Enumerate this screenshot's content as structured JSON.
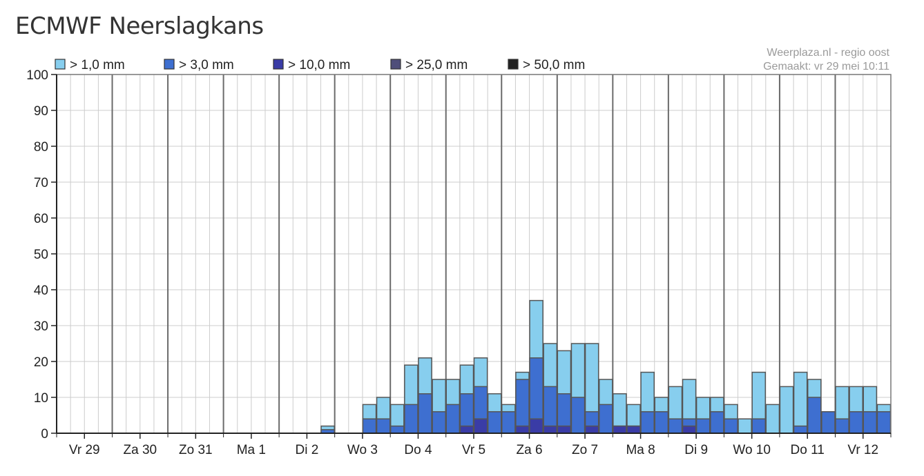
{
  "page_title": "ECMWF Neerslagkans",
  "credit": {
    "line1": "Weerplaza.nl - regio oost",
    "line2": "Gemaakt: vr 29 mei 10:11"
  },
  "colors": {
    "gt1": "#87ceee",
    "gt3": "#3e6fd0",
    "gt10": "#3a3ca6",
    "gt25": "#4f4e7a",
    "gt50": "#222222",
    "grid_major": "#6a6a6a",
    "grid_minor": "#cccccc",
    "bar_stroke": "#555555"
  },
  "chart_data": {
    "type": "bar",
    "stacked": "overlay",
    "ylim": [
      0,
      100
    ],
    "yticks": [
      0,
      10,
      20,
      30,
      40,
      50,
      60,
      70,
      80,
      90,
      100
    ],
    "grid": true,
    "legend_position": "top",
    "xlabel": "",
    "ylabel": "",
    "days": [
      "Vr 29",
      "Za 30",
      "Zo 31",
      "Ma 1",
      "Di 2",
      "Wo 3",
      "Do 4",
      "Vr 5",
      "Za 6",
      "Zo 7",
      "Ma 8",
      "Di 9",
      "Wo 10",
      "Do 11",
      "Vr 12"
    ],
    "periods_per_day": 4,
    "series": [
      {
        "name": "> 1,0 mm",
        "color_key": "gt1",
        "values": [
          0,
          0,
          0,
          0,
          0,
          0,
          0,
          0,
          0,
          0,
          0,
          0,
          0,
          0,
          0,
          0,
          0,
          0,
          0,
          2,
          0,
          0,
          8,
          10,
          8,
          19,
          21,
          15,
          15,
          19,
          21,
          11,
          8,
          17,
          37,
          25,
          23,
          25,
          25,
          15,
          11,
          8,
          17,
          10,
          13,
          15,
          10,
          10,
          8,
          4,
          17,
          8,
          13,
          17,
          15,
          6,
          13,
          13,
          13,
          8
        ]
      },
      {
        "name": "> 3,0 mm",
        "color_key": "gt3",
        "values": [
          0,
          0,
          0,
          0,
          0,
          0,
          0,
          0,
          0,
          0,
          0,
          0,
          0,
          0,
          0,
          0,
          0,
          0,
          0,
          1,
          0,
          0,
          4,
          4,
          2,
          8,
          11,
          6,
          8,
          11,
          13,
          6,
          6,
          15,
          21,
          13,
          11,
          10,
          6,
          8,
          2,
          2,
          6,
          6,
          4,
          4,
          4,
          6,
          4,
          0,
          4,
          0,
          0,
          2,
          10,
          6,
          4,
          6,
          6,
          6
        ]
      },
      {
        "name": "> 10,0 mm",
        "color_key": "gt10",
        "values": [
          0,
          0,
          0,
          0,
          0,
          0,
          0,
          0,
          0,
          0,
          0,
          0,
          0,
          0,
          0,
          0,
          0,
          0,
          0,
          0,
          0,
          0,
          0,
          0,
          0,
          0,
          0,
          0,
          0,
          2,
          4,
          0,
          0,
          2,
          4,
          2,
          2,
          0,
          2,
          0,
          2,
          2,
          0,
          0,
          0,
          2,
          0,
          0,
          0,
          0,
          0,
          0,
          0,
          0,
          0,
          0,
          0,
          0,
          0,
          0
        ]
      },
      {
        "name": "> 25,0 mm",
        "color_key": "gt25",
        "values": [
          0,
          0,
          0,
          0,
          0,
          0,
          0,
          0,
          0,
          0,
          0,
          0,
          0,
          0,
          0,
          0,
          0,
          0,
          0,
          0,
          0,
          0,
          0,
          0,
          0,
          0,
          0,
          0,
          0,
          0,
          0,
          0,
          0,
          0,
          0,
          0,
          0,
          0,
          0,
          0,
          0,
          0,
          0,
          0,
          0,
          0,
          0,
          0,
          0,
          0,
          0,
          0,
          0,
          0,
          0,
          0,
          0,
          0,
          0,
          0
        ]
      },
      {
        "name": "> 50,0 mm",
        "color_key": "gt50",
        "values": [
          0,
          0,
          0,
          0,
          0,
          0,
          0,
          0,
          0,
          0,
          0,
          0,
          0,
          0,
          0,
          0,
          0,
          0,
          0,
          0,
          0,
          0,
          0,
          0,
          0,
          0,
          0,
          0,
          0,
          0,
          0,
          0,
          0,
          0,
          0,
          0,
          0,
          0,
          0,
          0,
          0,
          0,
          0,
          0,
          0,
          0,
          0,
          0,
          0,
          0,
          0,
          0,
          0,
          0,
          0,
          0,
          0,
          0,
          0,
          0
        ]
      }
    ]
  }
}
